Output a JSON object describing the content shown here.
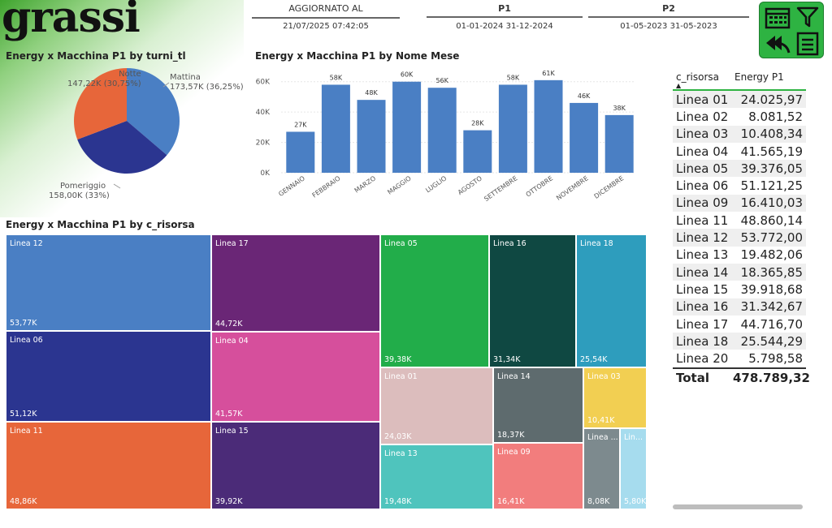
{
  "logo": {
    "text": "grassi"
  },
  "header": {
    "updated": {
      "label": "AGGIORNATO AL",
      "value": "21/07/2025 07:42:05"
    },
    "p1": {
      "label": "P1",
      "value": "01-01-2024 31-12-2024"
    },
    "p2": {
      "label": "P2",
      "value": "01-05-2023 31-05-2023"
    }
  },
  "colors": {
    "accent": "#2eb342",
    "bar": "#4a7fc4"
  },
  "pie": {
    "title": "Energy x Macchina P1 by turni_tl",
    "slices": [
      {
        "name": "Mattina",
        "label": "173,57K (36,25%)",
        "value": 173.57,
        "color": "#4a7fc4"
      },
      {
        "name": "Pomeriggio",
        "label": "158,00K (33%)",
        "value": 158.0,
        "color": "#2b3590"
      },
      {
        "name": "Notte",
        "label": "147,22K (30,75%)",
        "value": 147.22,
        "color": "#e7663a"
      }
    ]
  },
  "bar": {
    "title": "Energy x Macchina P1 by Nome Mese",
    "chart_data": {
      "type": "bar",
      "title": "Energy x Macchina P1 by Nome Mese",
      "categories": [
        "GENNAIO",
        "FEBBRAIO",
        "MARZO",
        "MAGGIO",
        "LUGLIO",
        "AGOSTO",
        "SETTEMBRE",
        "OTTOBRE",
        "NOVEMBRE",
        "DICEMBRE"
      ],
      "values": [
        27,
        58,
        48,
        60,
        56,
        28,
        58,
        61,
        46,
        38
      ],
      "data_labels": [
        "27K",
        "58K",
        "48K",
        "60K",
        "56K",
        "28K",
        "58K",
        "61K",
        "46K",
        "38K"
      ],
      "yticks": [
        "0K",
        "20K",
        "40K",
        "60K"
      ],
      "ylim": [
        0,
        70
      ],
      "xlabel": "",
      "ylabel": ""
    }
  },
  "treemap": {
    "title": "Energy x Macchina P1 by c_risorsa",
    "tiles": [
      {
        "name": "Linea 12",
        "value": "53,77K",
        "color": "#4a7fc4"
      },
      {
        "name": "Linea 06",
        "value": "51,12K",
        "color": "#2b3590"
      },
      {
        "name": "Linea 11",
        "value": "48,86K",
        "color": "#e7663a"
      },
      {
        "name": "Linea 17",
        "value": "44,72K",
        "color": "#6a2676"
      },
      {
        "name": "Linea 04",
        "value": "41,57K",
        "color": "#d64f9c"
      },
      {
        "name": "Linea 15",
        "value": "39,92K",
        "color": "#4b2b78"
      },
      {
        "name": "Linea 05",
        "value": "39,38K",
        "color": "#22ad4a"
      },
      {
        "name": "Linea 16",
        "value": "31,34K",
        "color": "#0f4842"
      },
      {
        "name": "Linea 18",
        "value": "25,54K",
        "color": "#2e9dbd"
      },
      {
        "name": "Linea 01",
        "value": "24,03K",
        "color": "#dcbdbd"
      },
      {
        "name": "Linea 14",
        "value": "18,37K",
        "color": "#5e6b6e"
      },
      {
        "name": "Linea 03",
        "value": "10,41K",
        "color": "#f2cf52"
      },
      {
        "name": "Linea 13",
        "value": "19,48K",
        "color": "#4fc4bd"
      },
      {
        "name": "Linea 09",
        "value": "16,41K",
        "color": "#f27d7d"
      },
      {
        "name": "Linea ...",
        "value": "8,08K",
        "color": "#7d8a8e"
      },
      {
        "name": "Lin...",
        "value": "5,80K",
        "color": "#a6dcee"
      }
    ]
  },
  "table": {
    "headers": [
      "c_risorsa",
      "Energy P1"
    ],
    "rows": [
      [
        "Linea 01",
        "24.025,97"
      ],
      [
        "Linea 02",
        "8.081,52"
      ],
      [
        "Linea 03",
        "10.408,34"
      ],
      [
        "Linea 04",
        "41.565,19"
      ],
      [
        "Linea 05",
        "39.376,05"
      ],
      [
        "Linea 06",
        "51.121,25"
      ],
      [
        "Linea 09",
        "16.410,03"
      ],
      [
        "Linea 11",
        "48.860,14"
      ],
      [
        "Linea 12",
        "53.772,00"
      ],
      [
        "Linea 13",
        "19.482,06"
      ],
      [
        "Linea 14",
        "18.365,85"
      ],
      [
        "Linea 15",
        "39.918,68"
      ],
      [
        "Linea 16",
        "31.342,67"
      ],
      [
        "Linea 17",
        "44.716,70"
      ],
      [
        "Linea 18",
        "25.544,29"
      ],
      [
        "Linea 20",
        "5.798,58"
      ]
    ],
    "total": [
      "Total",
      "478.789,32"
    ]
  }
}
